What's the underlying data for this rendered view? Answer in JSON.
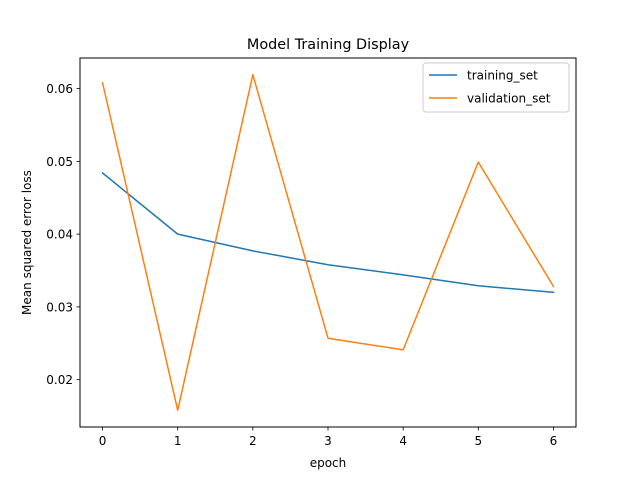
{
  "chart_data": {
    "type": "line",
    "title": "Model Training Display",
    "xlabel": "epoch",
    "ylabel": "Mean squared error loss",
    "x": [
      0,
      1,
      2,
      3,
      4,
      5,
      6
    ],
    "xticks": [
      "0",
      "1",
      "2",
      "3",
      "4",
      "5",
      "6"
    ],
    "yticks": [
      "0.02",
      "0.03",
      "0.04",
      "0.05",
      "0.06"
    ],
    "xlim": [
      -0.3,
      6.3
    ],
    "ylim": [
      0.0135,
      0.0642
    ],
    "grid": false,
    "legend_position": "top-right",
    "series": [
      {
        "name": "training_set",
        "color": "#1f77b4",
        "values": [
          0.0484,
          0.04,
          0.0377,
          0.0358,
          0.0344,
          0.0329,
          0.032
        ]
      },
      {
        "name": "validation_set",
        "color": "#ff7f0e",
        "values": [
          0.0608,
          0.0158,
          0.0619,
          0.0257,
          0.0241,
          0.0499,
          0.0328
        ]
      }
    ]
  }
}
